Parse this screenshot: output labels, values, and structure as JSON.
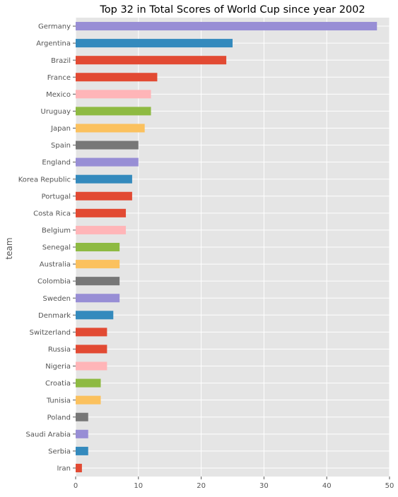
{
  "chart_data": {
    "type": "bar",
    "orientation": "horizontal",
    "title": "Top 32 in Total Scores of World Cup since year 2002",
    "xlabel": "",
    "ylabel": "team",
    "xlim": [
      0,
      50
    ],
    "xticks": [
      0,
      10,
      20,
      30,
      40,
      50
    ],
    "grid": true,
    "legend": "none",
    "categories": [
      "Germany",
      "Argentina",
      "Brazil",
      "France",
      "Mexico",
      "Uruguay",
      "Japan",
      "Spain",
      "England",
      "Korea Republic",
      "Portugal",
      "Costa Rica",
      "Belgium",
      "Senegal",
      "Australia",
      "Colombia",
      "Sweden",
      "Denmark",
      "Switzerland",
      "Russia",
      "Nigeria",
      "Croatia",
      "Tunisia",
      "Poland",
      "Saudi Arabia",
      "Serbia",
      "Iran"
    ],
    "values": [
      48,
      25,
      24,
      13,
      12,
      12,
      11,
      10,
      10,
      9,
      9,
      8,
      8,
      7,
      7,
      7,
      7,
      6,
      5,
      5,
      5,
      4,
      4,
      2,
      2,
      2,
      1
    ],
    "colors": [
      "#988ED5",
      "#348ABD",
      "#E24A33",
      "#E24A33",
      "#FFB5B8",
      "#8EBA42",
      "#FBC15E",
      "#777777",
      "#988ED5",
      "#348ABD",
      "#E24A33",
      "#E24A33",
      "#FFB5B8",
      "#8EBA42",
      "#FBC15E",
      "#777777",
      "#988ED5",
      "#348ABD",
      "#E24A33",
      "#E24A33",
      "#FFB5B8",
      "#8EBA42",
      "#FBC15E",
      "#777777",
      "#988ED5",
      "#348ABD",
      "#E24A33"
    ],
    "style": {
      "plot_background": "#E5E5E5",
      "grid_color": "#FFFFFF",
      "text_color": "#555555",
      "title_color": "#000000"
    }
  }
}
